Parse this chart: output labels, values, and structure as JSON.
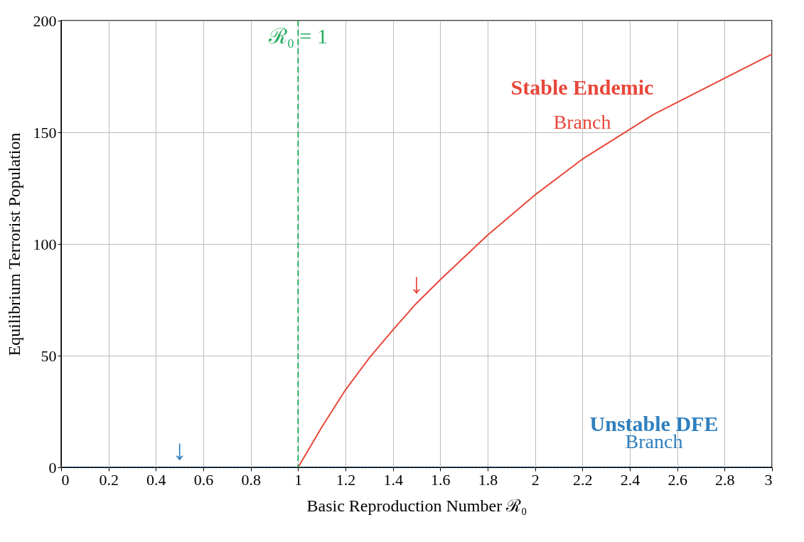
{
  "chart_data": {
    "type": "line",
    "xlabel": "Basic Reproduction Number ℛ₀",
    "ylabel": "Equilibrium Terrorist Population",
    "xlim": [
      0,
      3
    ],
    "xticks": [
      0,
      0.2,
      0.4,
      0.6,
      0.8,
      1,
      1.2,
      1.4,
      1.6,
      1.8,
      2,
      2.2,
      2.4,
      2.6,
      2.8,
      3
    ],
    "ylim": [
      0,
      200
    ],
    "yticks": [
      0,
      50,
      100,
      150,
      200
    ],
    "grid": true,
    "series": [
      {
        "color": "#e8473a",
        "line_style": "solid",
        "x": [
          1,
          1.1,
          1.2,
          1.3,
          1.4,
          1.5,
          1.6,
          1.8,
          2,
          2.2,
          2.5,
          3
        ],
        "values": [
          0,
          18,
          34.7,
          48.9,
          61.5,
          73.5,
          84,
          104,
          122,
          138,
          158,
          185
        ]
      },
      {
        "color": "#2e7fbf",
        "line_style": "dotted",
        "x": [
          0,
          3
        ],
        "values": [
          0,
          0
        ]
      }
    ],
    "ref_lines": [
      {
        "axis": "x",
        "value": 1,
        "label": "ℛ₀ = 1",
        "color": "#27ae60",
        "line_style": "dashed"
      }
    ],
    "annotations": [
      "Stable Endemic",
      "Branch",
      "Unstable DFE",
      "Branch",
      "↓",
      "↓"
    ]
  }
}
